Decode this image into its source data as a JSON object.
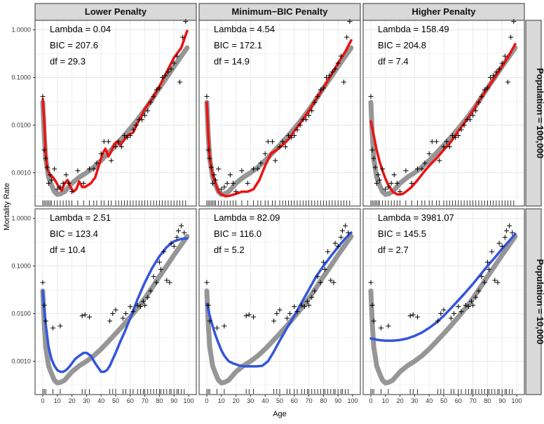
{
  "figure": {
    "y_axis_label": "Mortality Rate",
    "x_axis_label": "Age",
    "column_titles": [
      "Lower Penalty",
      "Minimum−BIC Penalty",
      "Higher Penalty"
    ],
    "row_titles": [
      "Population = 100,000",
      "Population = 10,000"
    ],
    "y_tick_labels": [
      "0.0010",
      "0.0100",
      "0.1000",
      "1.0000"
    ],
    "x_tick_labels": [
      "0",
      "10",
      "20",
      "30",
      "40",
      "50",
      "60",
      "70",
      "80",
      "90",
      "100"
    ]
  },
  "chart_data": {
    "type": "scatter",
    "title": "",
    "xlabel": "Age",
    "ylabel": "Mortality Rate",
    "x_range": [
      0,
      100
    ],
    "y_range_log10": [
      -3.7,
      0.2
    ],
    "y_ticks": [
      0.001,
      0.01,
      0.1,
      1.0
    ],
    "x_ticks": [
      0,
      10,
      20,
      30,
      40,
      50,
      60,
      70,
      80,
      90,
      100
    ],
    "true_curve": {
      "color": "#909090",
      "x": [
        0,
        1,
        2,
        4,
        6,
        8,
        10,
        12,
        15,
        20,
        25,
        30,
        35,
        40,
        45,
        50,
        55,
        60,
        65,
        70,
        75,
        80,
        85,
        90,
        95,
        99
      ],
      "y": [
        0.03,
        0.006,
        0.002,
        0.0008,
        0.00055,
        0.0004,
        0.00035,
        0.00036,
        0.0004,
        0.0006,
        0.0008,
        0.001,
        0.0013,
        0.0018,
        0.0026,
        0.0038,
        0.0056,
        0.0085,
        0.013,
        0.021,
        0.035,
        0.06,
        0.1,
        0.17,
        0.28,
        0.42
      ]
    },
    "panels": [
      {
        "row": 0,
        "col": 0,
        "lambda_label": "Lambda = 0.04",
        "bic_label": "BIC = 207.6",
        "df_label": "df = 29.3",
        "fit_color": "#ee1111",
        "fit": {
          "x": [
            0,
            1,
            2,
            3,
            5,
            7,
            9,
            11,
            13,
            15,
            17,
            19,
            21,
            23,
            25,
            27,
            29,
            31,
            33,
            36,
            39,
            41,
            43,
            45,
            47,
            49,
            51,
            53,
            55,
            58,
            60,
            62,
            65,
            68,
            70,
            75,
            80,
            85,
            90,
            95,
            99
          ],
          "y": [
            0.035,
            0.012,
            0.0025,
            0.0012,
            0.0009,
            0.0008,
            0.00065,
            0.0005,
            0.00042,
            0.0006,
            0.0007,
            0.0005,
            0.0004,
            0.00045,
            0.00065,
            0.0005,
            0.0005,
            0.00055,
            0.0006,
            0.0008,
            0.0016,
            0.0025,
            0.0032,
            0.0022,
            0.0028,
            0.004,
            0.0045,
            0.0038,
            0.0045,
            0.006,
            0.0065,
            0.007,
            0.011,
            0.016,
            0.022,
            0.035,
            0.065,
            0.13,
            0.26,
            0.42,
            0.95
          ]
        },
        "points": {
          "x": [
            0,
            1,
            2,
            3,
            4,
            5,
            6,
            8,
            10,
            12,
            14,
            16,
            18,
            20,
            24,
            28,
            32,
            35,
            37,
            40,
            42,
            45,
            47,
            50,
            52,
            54,
            56,
            58,
            60,
            62,
            64,
            66,
            68,
            70,
            72,
            74,
            76,
            78,
            80,
            82,
            84,
            86,
            88,
            90,
            92,
            94,
            96,
            98
          ],
          "y": [
            0.04,
            0.003,
            0.002,
            0.0013,
            0.0006,
            0.0009,
            0.0007,
            0.0012,
            0.00045,
            0.0005,
            0.0006,
            0.0009,
            0.0006,
            0.0004,
            0.0011,
            0.0006,
            0.0012,
            0.0012,
            0.0016,
            0.0025,
            0.0045,
            0.0045,
            0.0018,
            0.0035,
            0.0045,
            0.0035,
            0.006,
            0.0055,
            0.006,
            0.008,
            0.01,
            0.013,
            0.013,
            0.016,
            0.02,
            0.03,
            0.04,
            0.055,
            0.06,
            0.1,
            0.11,
            0.13,
            0.15,
            0.2,
            0.28,
            0.08,
            0.7,
            1.5
          ]
        }
      },
      {
        "row": 0,
        "col": 1,
        "lambda_label": "Lambda = 4.54",
        "bic_label": "BIC = 172.1",
        "df_label": "df = 14.9",
        "fit_color": "#ee1111",
        "fit": {
          "x": [
            0,
            1,
            2,
            4,
            6,
            8,
            10,
            13,
            16,
            20,
            24,
            28,
            32,
            36,
            40,
            44,
            48,
            52,
            56,
            60,
            65,
            70,
            75,
            80,
            85,
            90,
            95,
            99
          ],
          "y": [
            0.03,
            0.006,
            0.002,
            0.0009,
            0.0006,
            0.0004,
            0.00035,
            0.00032,
            0.00033,
            0.00036,
            0.0004,
            0.0004,
            0.00045,
            0.0007,
            0.0014,
            0.0025,
            0.003,
            0.0038,
            0.005,
            0.0075,
            0.012,
            0.02,
            0.035,
            0.06,
            0.11,
            0.2,
            0.35,
            0.6
          ]
        },
        "points": {
          "x": [
            0,
            1,
            2,
            3,
            4,
            5,
            6,
            8,
            10,
            12,
            14,
            16,
            18,
            20,
            24,
            28,
            32,
            35,
            37,
            40,
            42,
            45,
            47,
            50,
            52,
            54,
            56,
            58,
            60,
            62,
            64,
            66,
            68,
            70,
            72,
            74,
            76,
            78,
            80,
            82,
            84,
            86,
            88,
            90,
            92,
            94,
            96,
            98
          ],
          "y": [
            0.04,
            0.003,
            0.002,
            0.0013,
            0.0006,
            0.0009,
            0.0007,
            0.0012,
            0.00045,
            0.0005,
            0.0006,
            0.0009,
            0.0006,
            0.0004,
            0.0011,
            0.0006,
            0.0012,
            0.0012,
            0.0016,
            0.0025,
            0.0045,
            0.0045,
            0.0018,
            0.0035,
            0.0045,
            0.0035,
            0.006,
            0.0055,
            0.006,
            0.008,
            0.01,
            0.013,
            0.013,
            0.016,
            0.02,
            0.03,
            0.04,
            0.055,
            0.06,
            0.1,
            0.11,
            0.13,
            0.15,
            0.2,
            0.28,
            0.08,
            0.7,
            1.5
          ]
        }
      },
      {
        "row": 0,
        "col": 2,
        "lambda_label": "Lambda = 158.49",
        "bic_label": "BIC = 204.8",
        "df_label": "df = 7.4",
        "fit_color": "#ee1111",
        "fit": {
          "x": [
            0,
            2,
            4,
            6,
            8,
            10,
            12,
            15,
            18,
            20,
            22,
            25,
            28,
            32,
            36,
            40,
            45,
            50,
            55,
            60,
            65,
            70,
            75,
            80,
            85,
            90,
            95,
            99
          ],
          "y": [
            0.012,
            0.006,
            0.003,
            0.0017,
            0.0011,
            0.00075,
            0.00055,
            0.0004,
            0.00035,
            0.00035,
            0.00036,
            0.00042,
            0.0005,
            0.0007,
            0.001,
            0.0014,
            0.002,
            0.003,
            0.0045,
            0.0075,
            0.012,
            0.02,
            0.035,
            0.06,
            0.1,
            0.17,
            0.3,
            0.5
          ]
        },
        "points": {
          "x": [
            0,
            1,
            2,
            3,
            4,
            5,
            6,
            8,
            10,
            12,
            14,
            16,
            18,
            20,
            24,
            28,
            32,
            35,
            37,
            40,
            42,
            45,
            47,
            50,
            52,
            54,
            56,
            58,
            60,
            62,
            64,
            66,
            68,
            70,
            72,
            74,
            76,
            78,
            80,
            82,
            84,
            86,
            88,
            90,
            92,
            94,
            96,
            98
          ],
          "y": [
            0.04,
            0.003,
            0.002,
            0.0013,
            0.0006,
            0.0009,
            0.0007,
            0.0012,
            0.00045,
            0.0005,
            0.0006,
            0.0009,
            0.0006,
            0.0004,
            0.0011,
            0.0006,
            0.0012,
            0.0012,
            0.0016,
            0.0025,
            0.0045,
            0.0045,
            0.0018,
            0.0035,
            0.0045,
            0.0035,
            0.006,
            0.0055,
            0.006,
            0.008,
            0.01,
            0.013,
            0.013,
            0.016,
            0.02,
            0.03,
            0.04,
            0.055,
            0.06,
            0.1,
            0.11,
            0.13,
            0.15,
            0.2,
            0.28,
            0.08,
            0.7,
            1.5
          ]
        }
      },
      {
        "row": 1,
        "col": 0,
        "lambda_label": "Lambda = 2.51",
        "bic_label": "BIC = 123.4",
        "df_label": "df = 10.4",
        "fit_color": "#3355dd",
        "fit": {
          "x": [
            0,
            1,
            2,
            4,
            6,
            8,
            10,
            12,
            14,
            16,
            18,
            20,
            22,
            25,
            28,
            30,
            33,
            36,
            40,
            42,
            44,
            46,
            48,
            50,
            53,
            56,
            60,
            65,
            70,
            75,
            80,
            85,
            90,
            95,
            99
          ],
          "y": [
            0.03,
            0.012,
            0.006,
            0.002,
            0.0011,
            0.0008,
            0.00065,
            0.0006,
            0.0006,
            0.00065,
            0.00075,
            0.0009,
            0.0011,
            0.0013,
            0.0015,
            0.0015,
            0.0013,
            0.0009,
            0.0006,
            0.0006,
            0.00065,
            0.0008,
            0.0011,
            0.0015,
            0.0025,
            0.004,
            0.008,
            0.02,
            0.045,
            0.09,
            0.16,
            0.25,
            0.33,
            0.37,
            0.38
          ]
        },
        "points": {
          "x": [
            0,
            1,
            2,
            7,
            12,
            27,
            29,
            32,
            46,
            48,
            50,
            55,
            57,
            60,
            62,
            65,
            67,
            69,
            70,
            72,
            74,
            76,
            78,
            80,
            81,
            83,
            85,
            87,
            88,
            90,
            92,
            93,
            95,
            97
          ],
          "y": [
            0.045,
            0.015,
            0.007,
            0.005,
            0.0055,
            0.009,
            0.0095,
            0.0085,
            0.007,
            0.01,
            0.012,
            0.008,
            0.01,
            0.014,
            0.011,
            0.015,
            0.014,
            0.018,
            0.015,
            0.022,
            0.03,
            0.06,
            0.045,
            0.12,
            0.085,
            0.2,
            0.05,
            0.045,
            0.3,
            0.26,
            0.4,
            0.55,
            0.7,
            0.5
          ]
        }
      },
      {
        "row": 1,
        "col": 1,
        "lambda_label": "Lambda = 82.09",
        "bic_label": "BIC = 116.0",
        "df_label": "df = 5.2",
        "fit_color": "#3355dd",
        "fit": {
          "x": [
            0,
            2,
            4,
            6,
            8,
            10,
            12,
            15,
            18,
            22,
            26,
            30,
            34,
            38,
            42,
            46,
            50,
            55,
            60,
            65,
            70,
            75,
            80,
            85,
            90,
            95,
            99
          ],
          "y": [
            0.016,
            0.009,
            0.0055,
            0.0035,
            0.0024,
            0.0017,
            0.0013,
            0.001,
            0.0009,
            0.00082,
            0.00078,
            0.00078,
            0.00078,
            0.0008,
            0.001,
            0.0016,
            0.0027,
            0.005,
            0.009,
            0.017,
            0.032,
            0.06,
            0.1,
            0.16,
            0.25,
            0.38,
            0.5
          ]
        },
        "points": {
          "x": [
            0,
            1,
            2,
            7,
            12,
            27,
            29,
            32,
            46,
            48,
            50,
            55,
            57,
            60,
            62,
            65,
            67,
            69,
            70,
            72,
            74,
            76,
            78,
            80,
            81,
            83,
            85,
            87,
            88,
            90,
            92,
            93,
            95,
            97
          ],
          "y": [
            0.045,
            0.015,
            0.007,
            0.005,
            0.0055,
            0.009,
            0.0095,
            0.0085,
            0.007,
            0.01,
            0.012,
            0.008,
            0.01,
            0.014,
            0.011,
            0.015,
            0.014,
            0.018,
            0.015,
            0.022,
            0.03,
            0.06,
            0.045,
            0.12,
            0.085,
            0.2,
            0.05,
            0.045,
            0.3,
            0.26,
            0.4,
            0.55,
            0.7,
            0.5
          ]
        }
      },
      {
        "row": 1,
        "col": 2,
        "lambda_label": "Lambda = 3981.07",
        "bic_label": "BIC = 145.5",
        "df_label": "df = 2.7",
        "fit_color": "#3355dd",
        "fit": {
          "x": [
            0,
            5,
            10,
            15,
            20,
            25,
            30,
            35,
            40,
            45,
            50,
            55,
            60,
            65,
            70,
            75,
            80,
            85,
            90,
            95,
            99
          ],
          "y": [
            0.003,
            0.0028,
            0.0027,
            0.0027,
            0.0028,
            0.003,
            0.0034,
            0.004,
            0.005,
            0.0065,
            0.009,
            0.013,
            0.019,
            0.028,
            0.042,
            0.065,
            0.1,
            0.15,
            0.23,
            0.34,
            0.47
          ]
        },
        "points": {
          "x": [
            0,
            1,
            2,
            7,
            12,
            27,
            29,
            32,
            46,
            48,
            50,
            55,
            57,
            60,
            62,
            65,
            67,
            69,
            70,
            72,
            74,
            76,
            78,
            80,
            81,
            83,
            85,
            87,
            88,
            90,
            92,
            93,
            95,
            97
          ],
          "y": [
            0.045,
            0.015,
            0.007,
            0.005,
            0.0055,
            0.009,
            0.0095,
            0.0085,
            0.007,
            0.01,
            0.012,
            0.008,
            0.01,
            0.014,
            0.011,
            0.015,
            0.014,
            0.018,
            0.015,
            0.022,
            0.03,
            0.06,
            0.045,
            0.12,
            0.085,
            0.2,
            0.05,
            0.045,
            0.3,
            0.26,
            0.4,
            0.55,
            0.7,
            0.5
          ]
        }
      }
    ]
  }
}
